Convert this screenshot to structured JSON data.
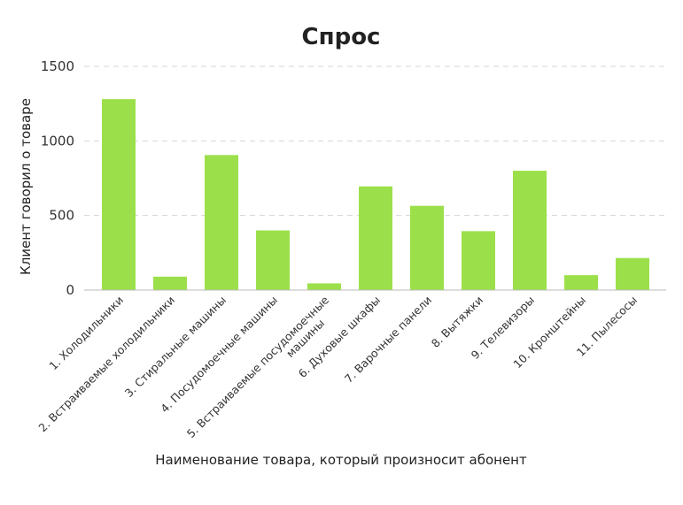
{
  "chart_data": {
    "type": "bar",
    "title": "Спрос",
    "xlabel": "Наименование товара, который произносит абонент",
    "ylabel": "Клиент говорил о товаре",
    "ylim": [
      0,
      1500
    ],
    "yticks": [
      0,
      500,
      1000,
      1500
    ],
    "grid": true,
    "bar_color": "#9be04a",
    "categories": [
      "1. Холодильники",
      "2. Встраиваемые холодильники",
      "3. Стиральные машины",
      "4. Посудомоечные машины",
      "5. Встраиваемые посудомоечные машины",
      "6. Духовые шкафы",
      "7. Варочные панели",
      "8. Вытяжки",
      "9. Телевизоры",
      "10. Кронштейны",
      "11. Пылесосы"
    ],
    "values": [
      1280,
      90,
      905,
      400,
      45,
      695,
      565,
      395,
      800,
      100,
      215
    ]
  }
}
